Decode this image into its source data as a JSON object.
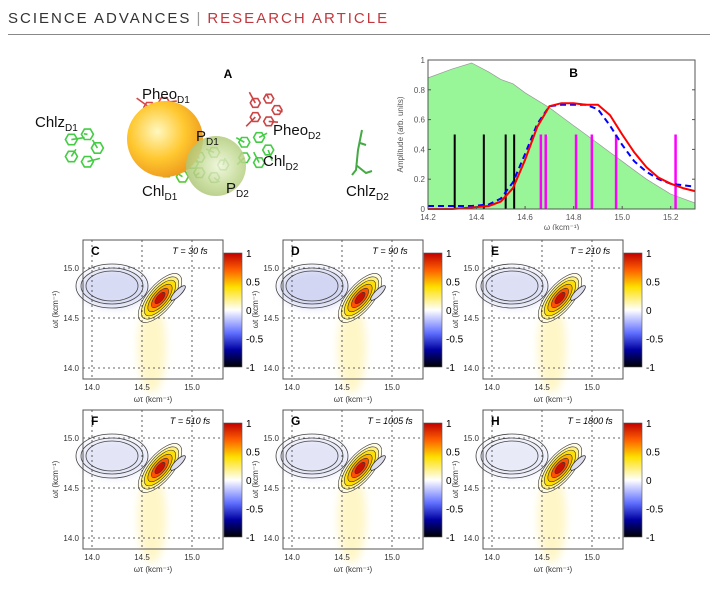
{
  "header": {
    "journal": "SCIENCE ADVANCES",
    "separator": "|",
    "type": "RESEARCH ARTICLE"
  },
  "colors": {
    "journal": "#333333",
    "type": "#c0393f",
    "spectrum_fill": "#98f598",
    "red_curve": "#ff0000",
    "blue_curve": "#0000ff",
    "stick_black": "#000000",
    "stick_magenta": "#ff00ff"
  },
  "panel_a": {
    "letter": "A",
    "labels": [
      {
        "id": "chlz-d1",
        "main": "Chlz",
        "sub": "D1"
      },
      {
        "id": "pheo-d1",
        "main": "Pheo",
        "sub": "D1"
      },
      {
        "id": "p-d1",
        "main": "P",
        "sub": "D1"
      },
      {
        "id": "chl-d1",
        "main": "Chl",
        "sub": "D1"
      },
      {
        "id": "p-d2",
        "main": "P",
        "sub": "D2"
      },
      {
        "id": "pheo-d2",
        "main": "Pheo",
        "sub": "D2"
      },
      {
        "id": "chl-d2",
        "main": "Chl",
        "sub": "D2"
      },
      {
        "id": "chlz-d2",
        "main": "Chlz",
        "sub": "D2"
      }
    ]
  },
  "chart_data": [
    {
      "id": "B",
      "type": "line",
      "letter": "B",
      "xlabel": "ω (kcm⁻¹)",
      "ylabel": "Amplitude (arb. units)",
      "xlim": [
        14.2,
        15.3
      ],
      "ylim": [
        0,
        1
      ],
      "xticks": [
        "14.2",
        "14.4",
        "14.6",
        "14.8",
        "15.0",
        "15.2"
      ],
      "yticks": [
        "0",
        "0.2",
        "0.4",
        "0.6",
        "0.8",
        "1"
      ],
      "x": [
        14.2,
        14.3,
        14.38,
        14.45,
        14.5,
        14.55,
        14.6,
        14.65,
        14.7,
        14.75,
        14.8,
        14.85,
        14.9,
        14.95,
        15.0,
        15.05,
        15.1,
        15.15,
        15.2,
        15.25,
        15.3
      ],
      "series": [
        {
          "style": "area",
          "values": [
            0.88,
            0.94,
            0.98,
            0.92,
            0.87,
            0.84,
            0.78,
            0.73,
            0.68,
            0.62,
            0.56,
            0.5,
            0.44,
            0.38,
            0.32,
            0.26,
            0.2,
            0.15,
            0.1,
            0.07,
            0.04
          ]
        },
        {
          "style": "solid",
          "values": [
            0.0,
            0.0,
            0.01,
            0.02,
            0.05,
            0.14,
            0.33,
            0.55,
            0.69,
            0.71,
            0.71,
            0.7,
            0.7,
            0.63,
            0.5,
            0.38,
            0.28,
            0.21,
            0.17,
            0.14,
            0.12
          ]
        },
        {
          "style": "dashed",
          "values": [
            0.02,
            0.02,
            0.02,
            0.03,
            0.07,
            0.18,
            0.37,
            0.57,
            0.69,
            0.7,
            0.7,
            0.7,
            0.67,
            0.56,
            0.43,
            0.32,
            0.25,
            0.2,
            0.17,
            0.16,
            0.15
          ]
        }
      ],
      "sticks_black": [
        14.31,
        14.43,
        14.52,
        14.555
      ],
      "sticks_magenta": [
        14.665,
        14.685,
        14.81,
        14.875,
        14.975,
        15.22
      ],
      "stick_height": 0.5
    },
    {
      "id": "C",
      "type": "heatmap",
      "letter": "C",
      "T": "T = 30 fs",
      "neg_strength": 0.35
    },
    {
      "id": "D",
      "type": "heatmap",
      "letter": "D",
      "T": "T = 90 fs",
      "neg_strength": 0.4
    },
    {
      "id": "E",
      "type": "heatmap",
      "letter": "E",
      "T": "T = 210 fs",
      "neg_strength": 0.3
    },
    {
      "id": "F",
      "type": "heatmap",
      "letter": "F",
      "T": "T = 510 fs",
      "neg_strength": 0.25
    },
    {
      "id": "G",
      "type": "heatmap",
      "letter": "G",
      "T": "T = 1005 fs",
      "neg_strength": 0.25
    },
    {
      "id": "H",
      "type": "heatmap",
      "letter": "H",
      "T": "T = 1800 fs",
      "neg_strength": 0.2
    }
  ],
  "maps_common": {
    "xlabel": "ωτ (kcm⁻¹)",
    "ylabel": "ωt (kcm⁻¹)",
    "xlim": [
      13.91,
      15.31
    ],
    "ylim": [
      13.89,
      15.28
    ],
    "xticks": [
      "14.0",
      "14.5",
      "15.0"
    ],
    "yticks": [
      "14.0",
      "14.5",
      "15.0"
    ],
    "colorbar_ticks": [
      "1",
      "0.5",
      "0",
      "-0.5",
      "-1"
    ],
    "colorbar_range": [
      -1,
      1
    ]
  }
}
